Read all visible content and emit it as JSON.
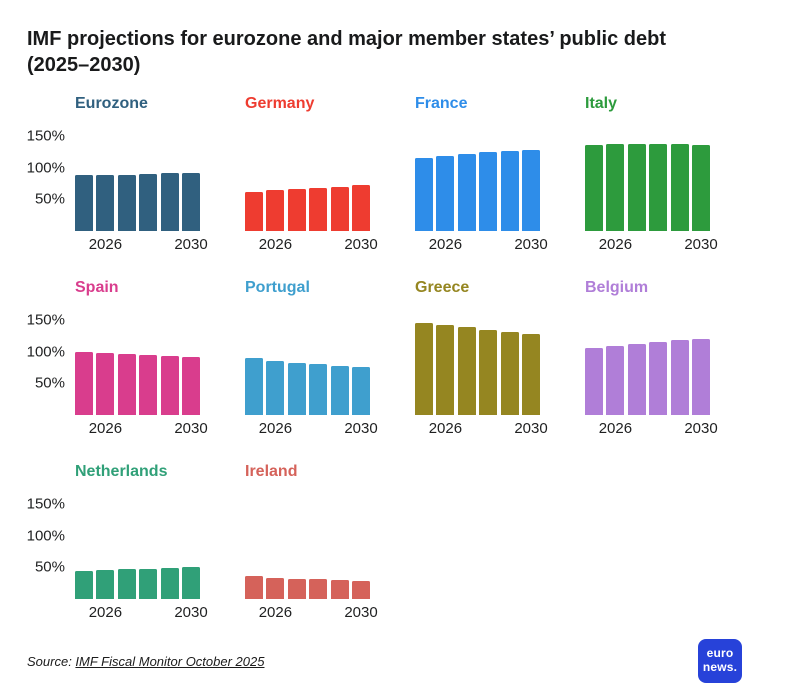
{
  "title": "IMF projections for eurozone and major member states’ public debt (2025–2030)",
  "source": {
    "prefix": "Source: ",
    "link": "IMF Fiscal Monitor October 2025"
  },
  "logo": {
    "line1": "euro",
    "line2": "news."
  },
  "axis": {
    "yticks": [
      {
        "label": "150%",
        "value": 150
      },
      {
        "label": "100%",
        "value": 100
      },
      {
        "label": "50%",
        "value": 50
      }
    ],
    "xticks": [
      {
        "label": "2026",
        "index": 1
      },
      {
        "label": "2030",
        "index": 5
      }
    ]
  },
  "chart_data": [
    {
      "type": "bar",
      "title": "Eurozone",
      "color": "#30607f",
      "categories": [
        2025,
        2026,
        2027,
        2028,
        2029,
        2030
      ],
      "values": [
        88,
        89,
        89,
        90,
        91,
        92
      ],
      "ylabel": "% of GDP",
      "ylim": [
        0,
        175
      ]
    },
    {
      "type": "bar",
      "title": "Germany",
      "color": "#ee3c30",
      "categories": [
        2025,
        2026,
        2027,
        2028,
        2029,
        2030
      ],
      "values": [
        62,
        64,
        66,
        68,
        70,
        72
      ],
      "ylabel": "% of GDP",
      "ylim": [
        0,
        175
      ]
    },
    {
      "type": "bar",
      "title": "France",
      "color": "#2e8de9",
      "categories": [
        2025,
        2026,
        2027,
        2028,
        2029,
        2030
      ],
      "values": [
        116,
        119,
        122,
        125,
        127,
        128
      ],
      "ylabel": "% of GDP",
      "ylim": [
        0,
        175
      ]
    },
    {
      "type": "bar",
      "title": "Italy",
      "color": "#2d9b3d",
      "categories": [
        2025,
        2026,
        2027,
        2028,
        2029,
        2030
      ],
      "values": [
        136,
        137,
        138,
        138,
        137,
        136
      ],
      "ylabel": "% of GDP",
      "ylim": [
        0,
        175
      ]
    },
    {
      "type": "bar",
      "title": "Spain",
      "color": "#d93d8d",
      "categories": [
        2025,
        2026,
        2027,
        2028,
        2029,
        2030
      ],
      "values": [
        100,
        98,
        97,
        95,
        94,
        92
      ],
      "ylabel": "% of GDP",
      "ylim": [
        0,
        175
      ]
    },
    {
      "type": "bar",
      "title": "Portugal",
      "color": "#3f9fce",
      "categories": [
        2025,
        2026,
        2027,
        2028,
        2029,
        2030
      ],
      "values": [
        90,
        86,
        83,
        80,
        78,
        76
      ],
      "ylabel": "% of GDP",
      "ylim": [
        0,
        175
      ]
    },
    {
      "type": "bar",
      "title": "Greece",
      "color": "#958621",
      "categories": [
        2025,
        2026,
        2027,
        2028,
        2029,
        2030
      ],
      "values": [
        145,
        142,
        139,
        135,
        131,
        128
      ],
      "ylabel": "% of GDP",
      "ylim": [
        0,
        175
      ]
    },
    {
      "type": "bar",
      "title": "Belgium",
      "color": "#b07ed8",
      "categories": [
        2025,
        2026,
        2027,
        2028,
        2029,
        2030
      ],
      "values": [
        106,
        109,
        112,
        115,
        118,
        121
      ],
      "ylabel": "% of GDP",
      "ylim": [
        0,
        175
      ]
    },
    {
      "type": "bar",
      "title": "Netherlands",
      "color": "#30a078",
      "categories": [
        2025,
        2026,
        2027,
        2028,
        2029,
        2030
      ],
      "values": [
        44,
        46,
        47,
        48,
        49,
        51
      ],
      "ylabel": "% of GDP",
      "ylim": [
        0,
        175
      ]
    },
    {
      "type": "bar",
      "title": "Ireland",
      "color": "#d5625a",
      "categories": [
        2025,
        2026,
        2027,
        2028,
        2029,
        2030
      ],
      "values": [
        36,
        33,
        32,
        31,
        30,
        29
      ],
      "ylabel": "% of GDP",
      "ylim": [
        0,
        175
      ]
    }
  ]
}
